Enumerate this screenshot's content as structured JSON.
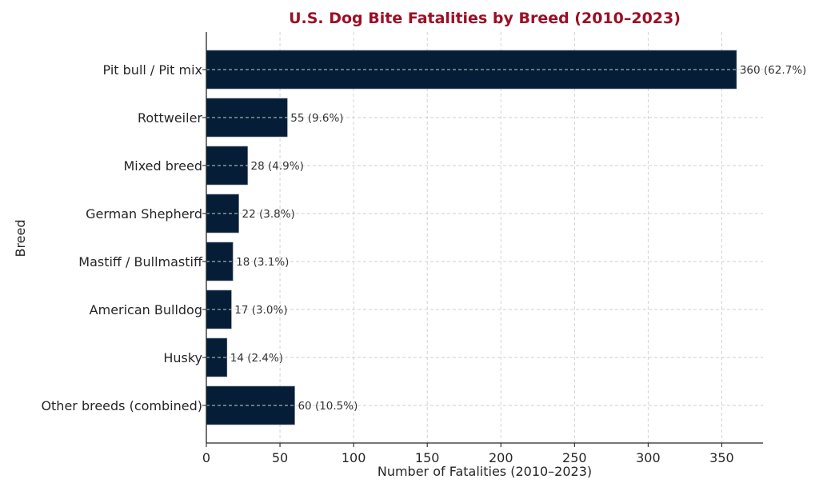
{
  "chart_data": {
    "type": "bar",
    "orientation": "horizontal",
    "title": "U.S. Dog Bite Fatalities by Breed (2010–2023)",
    "xlabel": "Number of Fatalities (2010–2023)",
    "ylabel": "Breed",
    "categories": [
      "Pit bull / Pit mix",
      "Rottweiler",
      "Mixed breed",
      "German Shepherd",
      "Mastiff / Bullmastiff",
      "American Bulldog",
      "Husky",
      "Other breeds (combined)"
    ],
    "values": [
      360,
      55,
      28,
      22,
      18,
      17,
      14,
      60
    ],
    "data_labels": [
      "360 (62.7%)",
      "55 (9.6%)",
      "28 (4.9%)",
      "22 (3.8%)",
      "18 (3.1%)",
      "17 (3.0%)",
      "14 (2.4%)",
      "60 (10.5%)"
    ],
    "xlim": [
      0,
      378
    ],
    "xticks": [
      0,
      50,
      100,
      150,
      200,
      250,
      300,
      350
    ],
    "grid": true,
    "legend": "none",
    "colors": {
      "bar": "#051d36",
      "title": "#9b0f25"
    }
  }
}
